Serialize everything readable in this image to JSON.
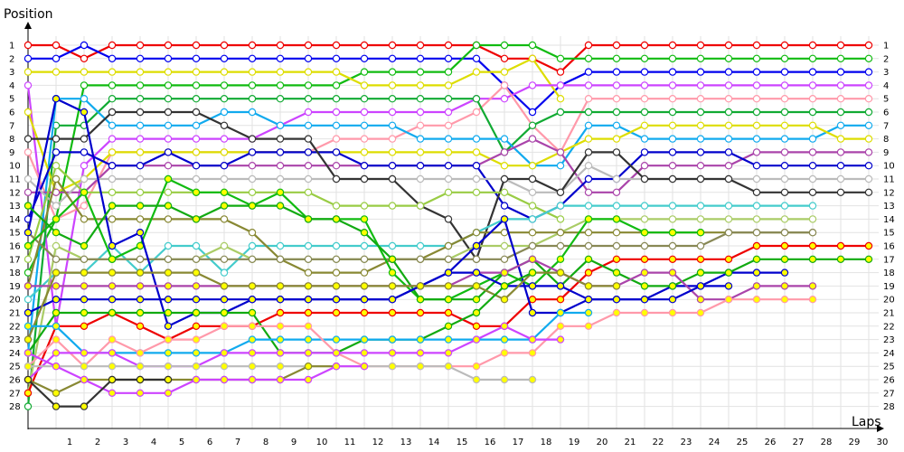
{
  "chart_data": {
    "type": "line",
    "title": "",
    "xlabel": "Laps",
    "ylabel": "Position",
    "x_ticks": [
      "1",
      "2",
      "3",
      "4",
      "5",
      "6",
      "7",
      "8",
      "9",
      "10",
      "11",
      "12",
      "13",
      "14",
      "15",
      "16",
      "17",
      "18",
      "19",
      "20",
      "21",
      "22",
      "23",
      "24",
      "25",
      "26",
      "27",
      "28",
      "29",
      "30"
    ],
    "y_ticks": [
      "1",
      "2",
      "3",
      "4",
      "5",
      "6",
      "7",
      "8",
      "9",
      "10",
      "11",
      "12",
      "13",
      "14",
      "15",
      "16",
      "17",
      "18",
      "19",
      "20",
      "21",
      "22",
      "23",
      "24",
      "25",
      "26",
      "27",
      "28"
    ],
    "xlim": [
      0,
      30
    ],
    "ylim": [
      28,
      1
    ],
    "grid": true,
    "legend": "none",
    "series": [
      {
        "color": "#ee0000",
        "fill": "#ffffff",
        "positions": [
          1,
          1,
          2,
          1,
          1,
          1,
          1,
          1,
          1,
          1,
          1,
          1,
          1,
          1,
          1,
          1,
          1,
          2,
          2,
          3,
          1,
          1,
          1,
          1,
          1,
          1,
          1,
          1,
          1,
          1,
          1
        ]
      },
      {
        "color": "#0000ee",
        "fill": "#ffffff",
        "positions": [
          2,
          2,
          1,
          2,
          2,
          2,
          2,
          2,
          2,
          2,
          2,
          2,
          2,
          2,
          2,
          2,
          2,
          4,
          6,
          4,
          3,
          3,
          3,
          3,
          3,
          3,
          3,
          3,
          3,
          3,
          3
        ]
      },
      {
        "color": "#11bb11",
        "fill": "#ffffff",
        "positions": [
          18,
          14,
          4,
          4,
          4,
          4,
          4,
          4,
          4,
          4,
          4,
          4,
          3,
          3,
          3,
          3,
          1,
          1,
          1,
          2,
          2,
          2,
          2,
          2,
          2,
          2,
          2,
          2,
          2,
          2,
          2
        ]
      },
      {
        "color": "#dddd00",
        "fill": "#ffffff",
        "positions": [
          3,
          3,
          3,
          3,
          3,
          3,
          3,
          3,
          3,
          3,
          3,
          3,
          4,
          4,
          4,
          4,
          3,
          3,
          2,
          5
        ]
      },
      {
        "color": "#cc44ff",
        "fill": "#ffffff",
        "positions": [
          4,
          22,
          10,
          8,
          8,
          8,
          8,
          8,
          8,
          7,
          6,
          6,
          6,
          6,
          6,
          6,
          5,
          5,
          4,
          4,
          4,
          4,
          4,
          4,
          4,
          4,
          4,
          4,
          4,
          4,
          4
        ]
      },
      {
        "color": "#ff99aa",
        "fill": "#ffffff",
        "positions": [
          9,
          14,
          13,
          9,
          9,
          9,
          9,
          9,
          9,
          9,
          9,
          8,
          8,
          8,
          7,
          7,
          6,
          4,
          7,
          9,
          5,
          5,
          5,
          5,
          5,
          5,
          5,
          5,
          5,
          5,
          5
        ]
      },
      {
        "color": "#11aa33",
        "fill": "#ffffff",
        "positions": [
          28,
          7,
          7,
          5,
          5,
          5,
          5,
          5,
          5,
          5,
          5,
          5,
          5,
          5,
          5,
          5,
          5,
          9,
          7,
          6,
          6,
          6,
          6,
          6,
          6,
          6,
          6,
          6,
          6,
          6,
          6
        ]
      },
      {
        "color": "#11aaee",
        "fill": "#ffffff",
        "positions": [
          24,
          5,
          5,
          7,
          7,
          7,
          7,
          6,
          6,
          7,
          7,
          7,
          7,
          7,
          8,
          8,
          8,
          8,
          10,
          10,
          7,
          7,
          8,
          8,
          8,
          8,
          8,
          8,
          8,
          7,
          7
        ]
      },
      {
        "color": "#dddd00",
        "fill": "#ffffff",
        "positions": [
          6,
          12,
          11,
          9,
          9,
          9,
          9,
          9,
          9,
          9,
          9,
          9,
          9,
          9,
          9,
          9,
          9,
          10,
          10,
          9,
          8,
          8,
          7,
          7,
          7,
          7,
          7,
          7,
          7,
          8,
          8
        ]
      },
      {
        "color": "#aa44aa",
        "fill": "#ffffff",
        "positions": [
          12,
          12,
          12,
          10,
          10,
          10,
          10,
          10,
          10,
          10,
          10,
          10,
          10,
          10,
          10,
          10,
          10,
          9,
          8,
          9,
          12,
          12,
          10,
          10,
          10,
          10,
          9,
          9,
          9,
          9,
          9
        ]
      },
      {
        "color": "#0000cc",
        "fill": "#ffffff",
        "positions": [
          14,
          9,
          9,
          10,
          10,
          9,
          10,
          10,
          9,
          9,
          9,
          9,
          10,
          10,
          10,
          10,
          10,
          13,
          14,
          13,
          11,
          11,
          9,
          9,
          9,
          9,
          10,
          10,
          10,
          10,
          10
        ]
      },
      {
        "color": "#bbbbbb",
        "fill": "#ffffff",
        "positions": [
          11,
          13,
          11,
          11,
          11,
          11,
          11,
          11,
          11,
          11,
          11,
          11,
          11,
          11,
          11,
          11,
          11,
          11,
          12,
          12,
          10,
          11,
          11,
          11,
          11,
          11,
          11,
          11,
          11,
          11,
          11
        ]
      },
      {
        "color": "#333333",
        "fill": "#ffffff",
        "positions": [
          8,
          8,
          8,
          6,
          6,
          6,
          6,
          7,
          8,
          8,
          8,
          11,
          11,
          11,
          13,
          14,
          17,
          11,
          11,
          12,
          9,
          9,
          11,
          11,
          11,
          11,
          12,
          12,
          12,
          12,
          12
        ]
      },
      {
        "color": "#99cc44",
        "fill": "#ffffff",
        "positions": [
          17,
          10,
          12,
          12,
          12,
          12,
          12,
          12,
          12,
          12,
          12,
          13,
          13,
          13,
          13,
          12,
          12,
          12,
          13,
          14
        ]
      },
      {
        "color": "#44cccc",
        "fill": "#ffffff",
        "positions": [
          20,
          18,
          18,
          16,
          18,
          16,
          16,
          18,
          16,
          16,
          16,
          16,
          16,
          16,
          16,
          16,
          15,
          14,
          14,
          13,
          13,
          13,
          13,
          13,
          13,
          13,
          13,
          13,
          13
        ]
      },
      {
        "color": "#aacc66",
        "fill": "#ffffff",
        "positions": [
          27,
          16,
          17,
          17,
          17,
          17,
          17,
          16,
          17,
          17,
          17,
          17,
          17,
          17,
          17,
          17,
          16,
          16,
          16,
          15,
          14,
          14,
          14,
          14,
          14,
          14,
          14,
          14,
          14
        ]
      },
      {
        "color": "#888833",
        "fill": "#ffffff",
        "positions": [
          19,
          11,
          14,
          14,
          14,
          14,
          14,
          14,
          15,
          17,
          18,
          18,
          18,
          17,
          17,
          16,
          15,
          15,
          15,
          15,
          15,
          15,
          15,
          15,
          15,
          15,
          15,
          15,
          15
        ]
      },
      {
        "color": "#888855",
        "fill": "#ffffff",
        "positions": [
          15,
          17,
          17,
          17,
          17,
          17,
          17,
          17,
          17,
          17,
          17,
          17,
          17,
          17,
          17,
          17,
          17,
          17,
          16,
          16,
          16,
          16,
          16,
          16,
          16,
          15,
          15,
          15,
          15
        ]
      }
    ],
    "marked_series": [
      {
        "color": "#ee0000",
        "fill": "#ffff00",
        "positions": [
          27,
          22,
          22,
          21,
          22,
          23,
          22,
          22,
          22,
          21,
          21,
          21,
          21,
          21,
          21,
          21,
          22,
          22,
          20,
          20,
          18,
          17,
          17,
          17,
          17,
          17,
          16,
          16,
          16,
          16,
          16
        ]
      },
      {
        "color": "#11bb11",
        "fill": "#ffff00",
        "positions": [
          16,
          14,
          12,
          17,
          16,
          11,
          12,
          12,
          13,
          12,
          14,
          14,
          14,
          18,
          20,
          20,
          19,
          18,
          19,
          17,
          14,
          14,
          15,
          15,
          15
        ]
      },
      {
        "color": "#0000cc",
        "fill": "#ffff00",
        "positions": [
          15,
          5,
          6,
          16,
          15,
          22,
          21,
          21,
          20,
          20,
          20,
          20,
          20,
          20,
          19,
          18,
          16,
          14,
          21,
          21,
          20,
          20,
          20,
          19,
          19,
          18,
          18,
          18
        ]
      },
      {
        "color": "#11aa11",
        "fill": "#ffff00",
        "positions": [
          13,
          15,
          16,
          13,
          13,
          13,
          14,
          13,
          13,
          13,
          14,
          14,
          15,
          17,
          20,
          20,
          20,
          18,
          17,
          19,
          17,
          18,
          19,
          19,
          18,
          18,
          17,
          17,
          17,
          17,
          17
        ]
      },
      {
        "color": "#aa44aa",
        "fill": "#ffff00",
        "positions": [
          19,
          19,
          19,
          19,
          19,
          19,
          19,
          19,
          19,
          19,
          19,
          19,
          19,
          19,
          19,
          19,
          18,
          18,
          17,
          18,
          19,
          19,
          18,
          18,
          20,
          20,
          19,
          19,
          19
        ]
      },
      {
        "color": "#0000cc",
        "fill": "#ffff00",
        "positions": [
          21,
          20,
          20,
          20,
          20,
          20,
          20,
          20,
          20,
          20,
          20,
          20,
          20,
          20,
          19,
          18,
          18,
          19,
          19,
          19,
          20,
          20,
          20,
          20,
          19,
          19
        ]
      },
      {
        "color": "#888833",
        "fill": "#ffff00",
        "positions": [
          23,
          18,
          18,
          18,
          18,
          18,
          18,
          19,
          19,
          19,
          19,
          19,
          19,
          19,
          19,
          19,
          19,
          20,
          18,
          18,
          19,
          19
        ]
      },
      {
        "color": "#11aa11",
        "fill": "#ffff00",
        "positions": [
          24,
          21,
          21,
          21,
          21,
          21,
          21,
          21,
          21,
          24,
          24,
          24,
          23,
          23,
          23,
          22,
          21,
          19,
          18
        ]
      },
      {
        "color": "#11aaee",
        "fill": "#ffff00",
        "positions": [
          22,
          22,
          24,
          24,
          24,
          24,
          24,
          24,
          23,
          23,
          23,
          23,
          23,
          23,
          23,
          23,
          23,
          23,
          23,
          21,
          21
        ]
      },
      {
        "color": "#ff99aa",
        "fill": "#ffff00",
        "positions": [
          25,
          23,
          25,
          23,
          24,
          23,
          23,
          22,
          22,
          22,
          22,
          24,
          25,
          25,
          25,
          25,
          25,
          24,
          24,
          22,
          22,
          21,
          21,
          21,
          21,
          20,
          20,
          20,
          20
        ]
      },
      {
        "color": "#cc44ff",
        "fill": "#ffff00",
        "positions": [
          26,
          24,
          24,
          24,
          25,
          25,
          25,
          24,
          24,
          24,
          24,
          24,
          24,
          24,
          24,
          24,
          23,
          22,
          23,
          23
        ]
      },
      {
        "color": "#bbbbbb",
        "fill": "#ffff00",
        "positions": [
          25,
          25,
          25,
          25,
          25,
          25,
          25,
          25,
          25,
          25,
          25,
          25,
          25,
          25,
          25,
          25,
          26,
          26,
          26
        ]
      },
      {
        "color": "#888833",
        "fill": "#ffff00",
        "positions": [
          26,
          27,
          26,
          26,
          26,
          26,
          26,
          26,
          26,
          26,
          25,
          25
        ]
      },
      {
        "color": "#cc44ff",
        "fill": "#ffff00",
        "positions": [
          24,
          25,
          26,
          27,
          27,
          27,
          26,
          26,
          26,
          26,
          26,
          25,
          25
        ]
      },
      {
        "color": "#333333",
        "fill": "#ffff00",
        "positions": [
          26,
          28,
          28,
          26,
          26,
          26
        ]
      }
    ]
  }
}
